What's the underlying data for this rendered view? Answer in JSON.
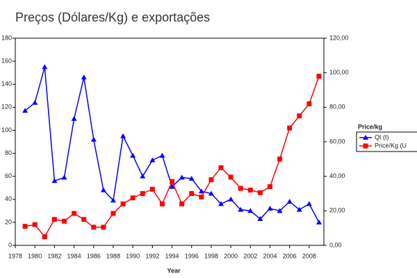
{
  "chart_data": {
    "type": "line",
    "title": "Preços (Dólares/Kg) e exportações",
    "x_label": "Year",
    "x": [
      1979,
      1980,
      1981,
      1982,
      1983,
      1984,
      1985,
      1986,
      1987,
      1988,
      1989,
      1990,
      1991,
      1992,
      1993,
      1994,
      1995,
      1996,
      1997,
      1998,
      1999,
      2000,
      2001,
      2002,
      2003,
      2004,
      2005,
      2006,
      2007,
      2008,
      2009
    ],
    "xlim": [
      1978,
      2009.5
    ],
    "xticks": [
      1978,
      1980,
      1982,
      1984,
      1986,
      1988,
      1990,
      1992,
      1994,
      1996,
      1998,
      2000,
      2002,
      2004,
      2006,
      2008
    ],
    "ylim": [
      0,
      180
    ],
    "yticks": [
      0,
      20,
      40,
      60,
      80,
      100,
      120,
      140,
      160,
      180
    ],
    "y2lim": [
      0,
      120
    ],
    "y2ticks": [
      {
        "value": 0,
        "label": "0,00"
      },
      {
        "value": 20,
        "label": "20,00"
      },
      {
        "value": 40,
        "label": "40,00"
      },
      {
        "value": 60,
        "label": "60,00"
      },
      {
        "value": 80,
        "label": "80,00"
      },
      {
        "value": 100,
        "label": "100,00"
      },
      {
        "value": 120,
        "label": "120,00"
      }
    ],
    "legend_title": "Price/kg",
    "legend": "right",
    "series": [
      {
        "name": "Qt (t)",
        "color": "#0000ff",
        "marker": "triangle",
        "values": [
          117,
          124,
          155,
          56,
          59,
          110,
          146,
          92,
          48,
          39,
          95,
          78,
          60,
          74,
          78,
          51,
          59,
          58,
          47,
          45,
          36,
          40,
          31,
          30,
          23,
          32,
          30,
          38,
          31,
          36,
          20
        ]
      },
      {
        "name": "Price/Kg (U",
        "color": "#ff0000",
        "marker": "square",
        "axis": "y2",
        "values": [
          11,
          12,
          5,
          15,
          14,
          18.5,
          15,
          10.5,
          10.5,
          18.5,
          24,
          27.5,
          30,
          32.5,
          24,
          37,
          24,
          30,
          28,
          38,
          45,
          39.5,
          33,
          32,
          30.5,
          34,
          50,
          68,
          75,
          82,
          98
        ]
      }
    ]
  }
}
